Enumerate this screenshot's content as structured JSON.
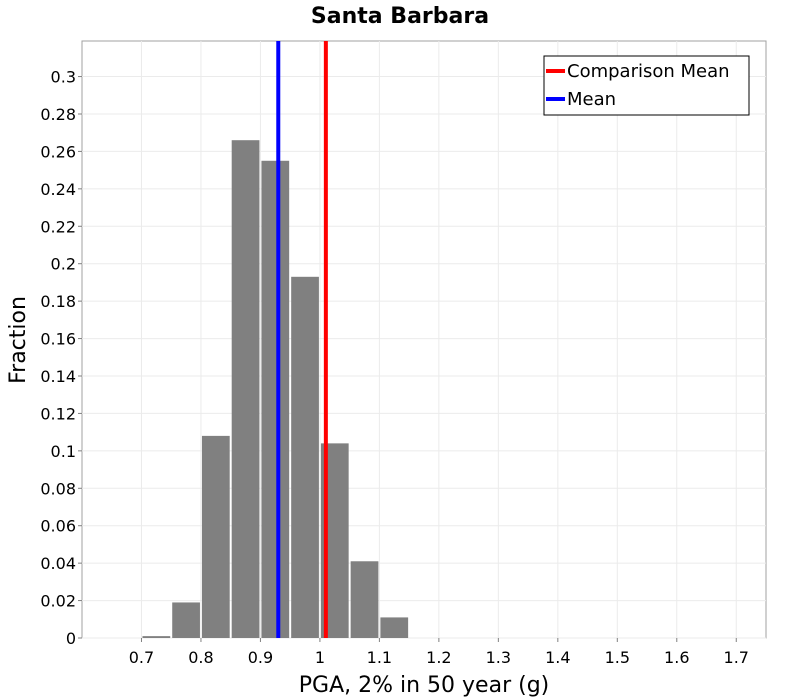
{
  "chart_data": {
    "type": "bar",
    "title": "Santa Barbara",
    "xlabel": "PGA, 2% in 50 year (g)",
    "ylabel": "Fraction",
    "xlim": [
      0.6,
      1.75
    ],
    "ylim": [
      0,
      0.319
    ],
    "grid": true,
    "legend_position": "top-right",
    "xticks": [
      "0.7",
      "0.8",
      "0.9",
      "1",
      "1.1",
      "1.2",
      "1.3",
      "1.4",
      "1.5",
      "1.6",
      "1.7"
    ],
    "yticks": [
      "0",
      "0.02",
      "0.04",
      "0.06",
      "0.08",
      "0.1",
      "0.12",
      "0.14",
      "0.16",
      "0.18",
      "0.2",
      "0.22",
      "0.24",
      "0.26",
      "0.28",
      "0.3"
    ],
    "bin_width": 0.05,
    "bins": [
      {
        "center": 0.725,
        "value": 0.001
      },
      {
        "center": 0.775,
        "value": 0.019
      },
      {
        "center": 0.825,
        "value": 0.108
      },
      {
        "center": 0.875,
        "value": 0.266
      },
      {
        "center": 0.925,
        "value": 0.255
      },
      {
        "center": 0.975,
        "value": 0.193
      },
      {
        "center": 1.025,
        "value": 0.104
      },
      {
        "center": 1.075,
        "value": 0.041
      },
      {
        "center": 1.125,
        "value": 0.011
      }
    ],
    "bar_color": "#808080",
    "vlines": [
      {
        "name": "Comparison Mean",
        "x": 1.01,
        "color": "#ff0000"
      },
      {
        "name": "Mean",
        "x": 0.93,
        "color": "#0000ff"
      }
    ]
  }
}
